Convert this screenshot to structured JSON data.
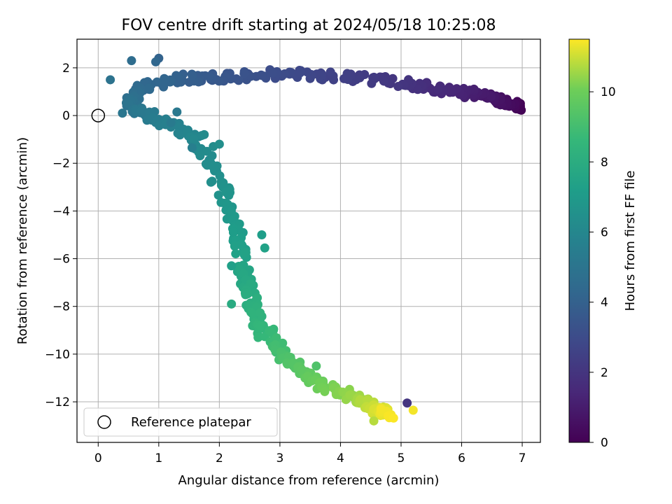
{
  "chart_data": {
    "type": "scatter",
    "title": "FOV centre drift starting at 2024/05/18 10:25:08",
    "xlabel": "Angular distance from reference (arcmin)",
    "ylabel": "Rotation from reference (arcmin)",
    "xlim": [
      -0.35,
      7.3
    ],
    "ylim": [
      -13.7,
      3.2
    ],
    "xticks": [
      0,
      1,
      2,
      3,
      4,
      5,
      6,
      7
    ],
    "xtick_labels": [
      "0",
      "1",
      "2",
      "3",
      "4",
      "5",
      "6",
      "7"
    ],
    "yticks": [
      2,
      0,
      -2,
      -4,
      -6,
      -8,
      -10,
      -12
    ],
    "ytick_labels": [
      "2",
      "0",
      "−2",
      "−4",
      "−6",
      "−8",
      "−10",
      "−12"
    ],
    "grid": true,
    "legend": {
      "location": "lower left",
      "entries": [
        "Reference platepar"
      ]
    },
    "reference_point": {
      "x": 0,
      "y": 0
    },
    "colorbar": {
      "label": "Hours from first FF file",
      "colormap": "viridis",
      "range": [
        0,
        11.5
      ],
      "ticks": [
        0,
        2,
        4,
        6,
        8,
        10
      ],
      "tick_labels": [
        "0",
        "2",
        "4",
        "6",
        "8",
        "10"
      ]
    },
    "trajectory": [
      {
        "t": 0.0,
        "x": 6.95,
        "y": 0.3
      },
      {
        "t": 0.5,
        "x": 6.7,
        "y": 0.6
      },
      {
        "t": 1.0,
        "x": 6.3,
        "y": 0.85
      },
      {
        "t": 1.5,
        "x": 5.7,
        "y": 1.1
      },
      {
        "t": 2.0,
        "x": 5.0,
        "y": 1.35
      },
      {
        "t": 2.5,
        "x": 4.0,
        "y": 1.65
      },
      {
        "t": 3.0,
        "x": 3.0,
        "y": 1.75
      },
      {
        "t": 3.5,
        "x": 2.0,
        "y": 1.6
      },
      {
        "t": 4.0,
        "x": 1.3,
        "y": 1.55
      },
      {
        "t": 4.5,
        "x": 0.6,
        "y": 1.1
      },
      {
        "t": 5.0,
        "x": 0.55,
        "y": 0.3
      },
      {
        "t": 5.5,
        "x": 1.0,
        "y": -0.2
      },
      {
        "t": 6.0,
        "x": 1.6,
        "y": -1.0
      },
      {
        "t": 6.5,
        "x": 2.0,
        "y": -2.8
      },
      {
        "t": 7.0,
        "x": 2.3,
        "y": -4.6
      },
      {
        "t": 7.5,
        "x": 2.4,
        "y": -6.2
      },
      {
        "t": 8.0,
        "x": 2.5,
        "y": -7.6
      },
      {
        "t": 8.5,
        "x": 2.7,
        "y": -8.9
      },
      {
        "t": 9.0,
        "x": 3.0,
        "y": -9.9
      },
      {
        "t": 9.5,
        "x": 3.3,
        "y": -10.6
      },
      {
        "t": 10.0,
        "x": 3.7,
        "y": -11.3
      },
      {
        "t": 10.5,
        "x": 4.2,
        "y": -11.8
      },
      {
        "t": 11.0,
        "x": 4.6,
        "y": -12.3
      },
      {
        "t": 11.5,
        "x": 4.8,
        "y": -12.5
      }
    ],
    "extra_points": [
      {
        "t": 4.6,
        "x": 0.55,
        "y": 2.3
      },
      {
        "t": 4.1,
        "x": 1.0,
        "y": 2.4
      },
      {
        "t": 4.3,
        "x": 0.95,
        "y": 2.25
      },
      {
        "t": 5.6,
        "x": 1.55,
        "y": -1.35
      },
      {
        "t": 6.2,
        "x": 1.75,
        "y": -0.8
      },
      {
        "t": 6.3,
        "x": 1.9,
        "y": -1.3
      },
      {
        "t": 6.4,
        "x": 2.0,
        "y": -1.2
      },
      {
        "t": 5.2,
        "x": 1.3,
        "y": 0.15
      },
      {
        "t": 5.3,
        "x": 1.2,
        "y": -0.3
      },
      {
        "t": 4.9,
        "x": 0.2,
        "y": 1.5
      },
      {
        "t": 5.1,
        "x": 0.4,
        "y": 0.1
      },
      {
        "t": 2.0,
        "x": 5.1,
        "y": -12.05
      },
      {
        "t": 11.4,
        "x": 5.2,
        "y": -12.35
      },
      {
        "t": 9.3,
        "x": 3.6,
        "y": -10.5
      },
      {
        "t": 7.9,
        "x": 2.2,
        "y": -7.9
      },
      {
        "t": 7.3,
        "x": 2.2,
        "y": -6.3
      },
      {
        "t": 7.2,
        "x": 2.7,
        "y": -5.0
      },
      {
        "t": 7.4,
        "x": 2.75,
        "y": -5.55
      },
      {
        "t": 10.8,
        "x": 4.55,
        "y": -12.8
      }
    ]
  }
}
